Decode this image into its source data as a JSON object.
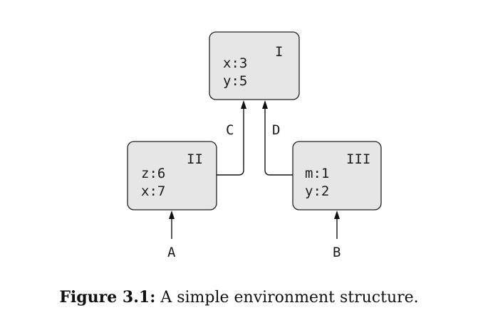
{
  "frames": [
    {
      "id": "I",
      "label": "I",
      "bindings": [
        "x:3",
        "y:5"
      ]
    },
    {
      "id": "II",
      "label": "II",
      "bindings": [
        "z:6",
        "x:7"
      ]
    },
    {
      "id": "III",
      "label": "III",
      "bindings": [
        "m:1",
        "y:2"
      ]
    }
  ],
  "edges": {
    "C": "C",
    "D": "D",
    "A": "A",
    "B": "B"
  },
  "caption": {
    "number": "Figure 3.1:",
    "text": "A simple environment structure."
  }
}
